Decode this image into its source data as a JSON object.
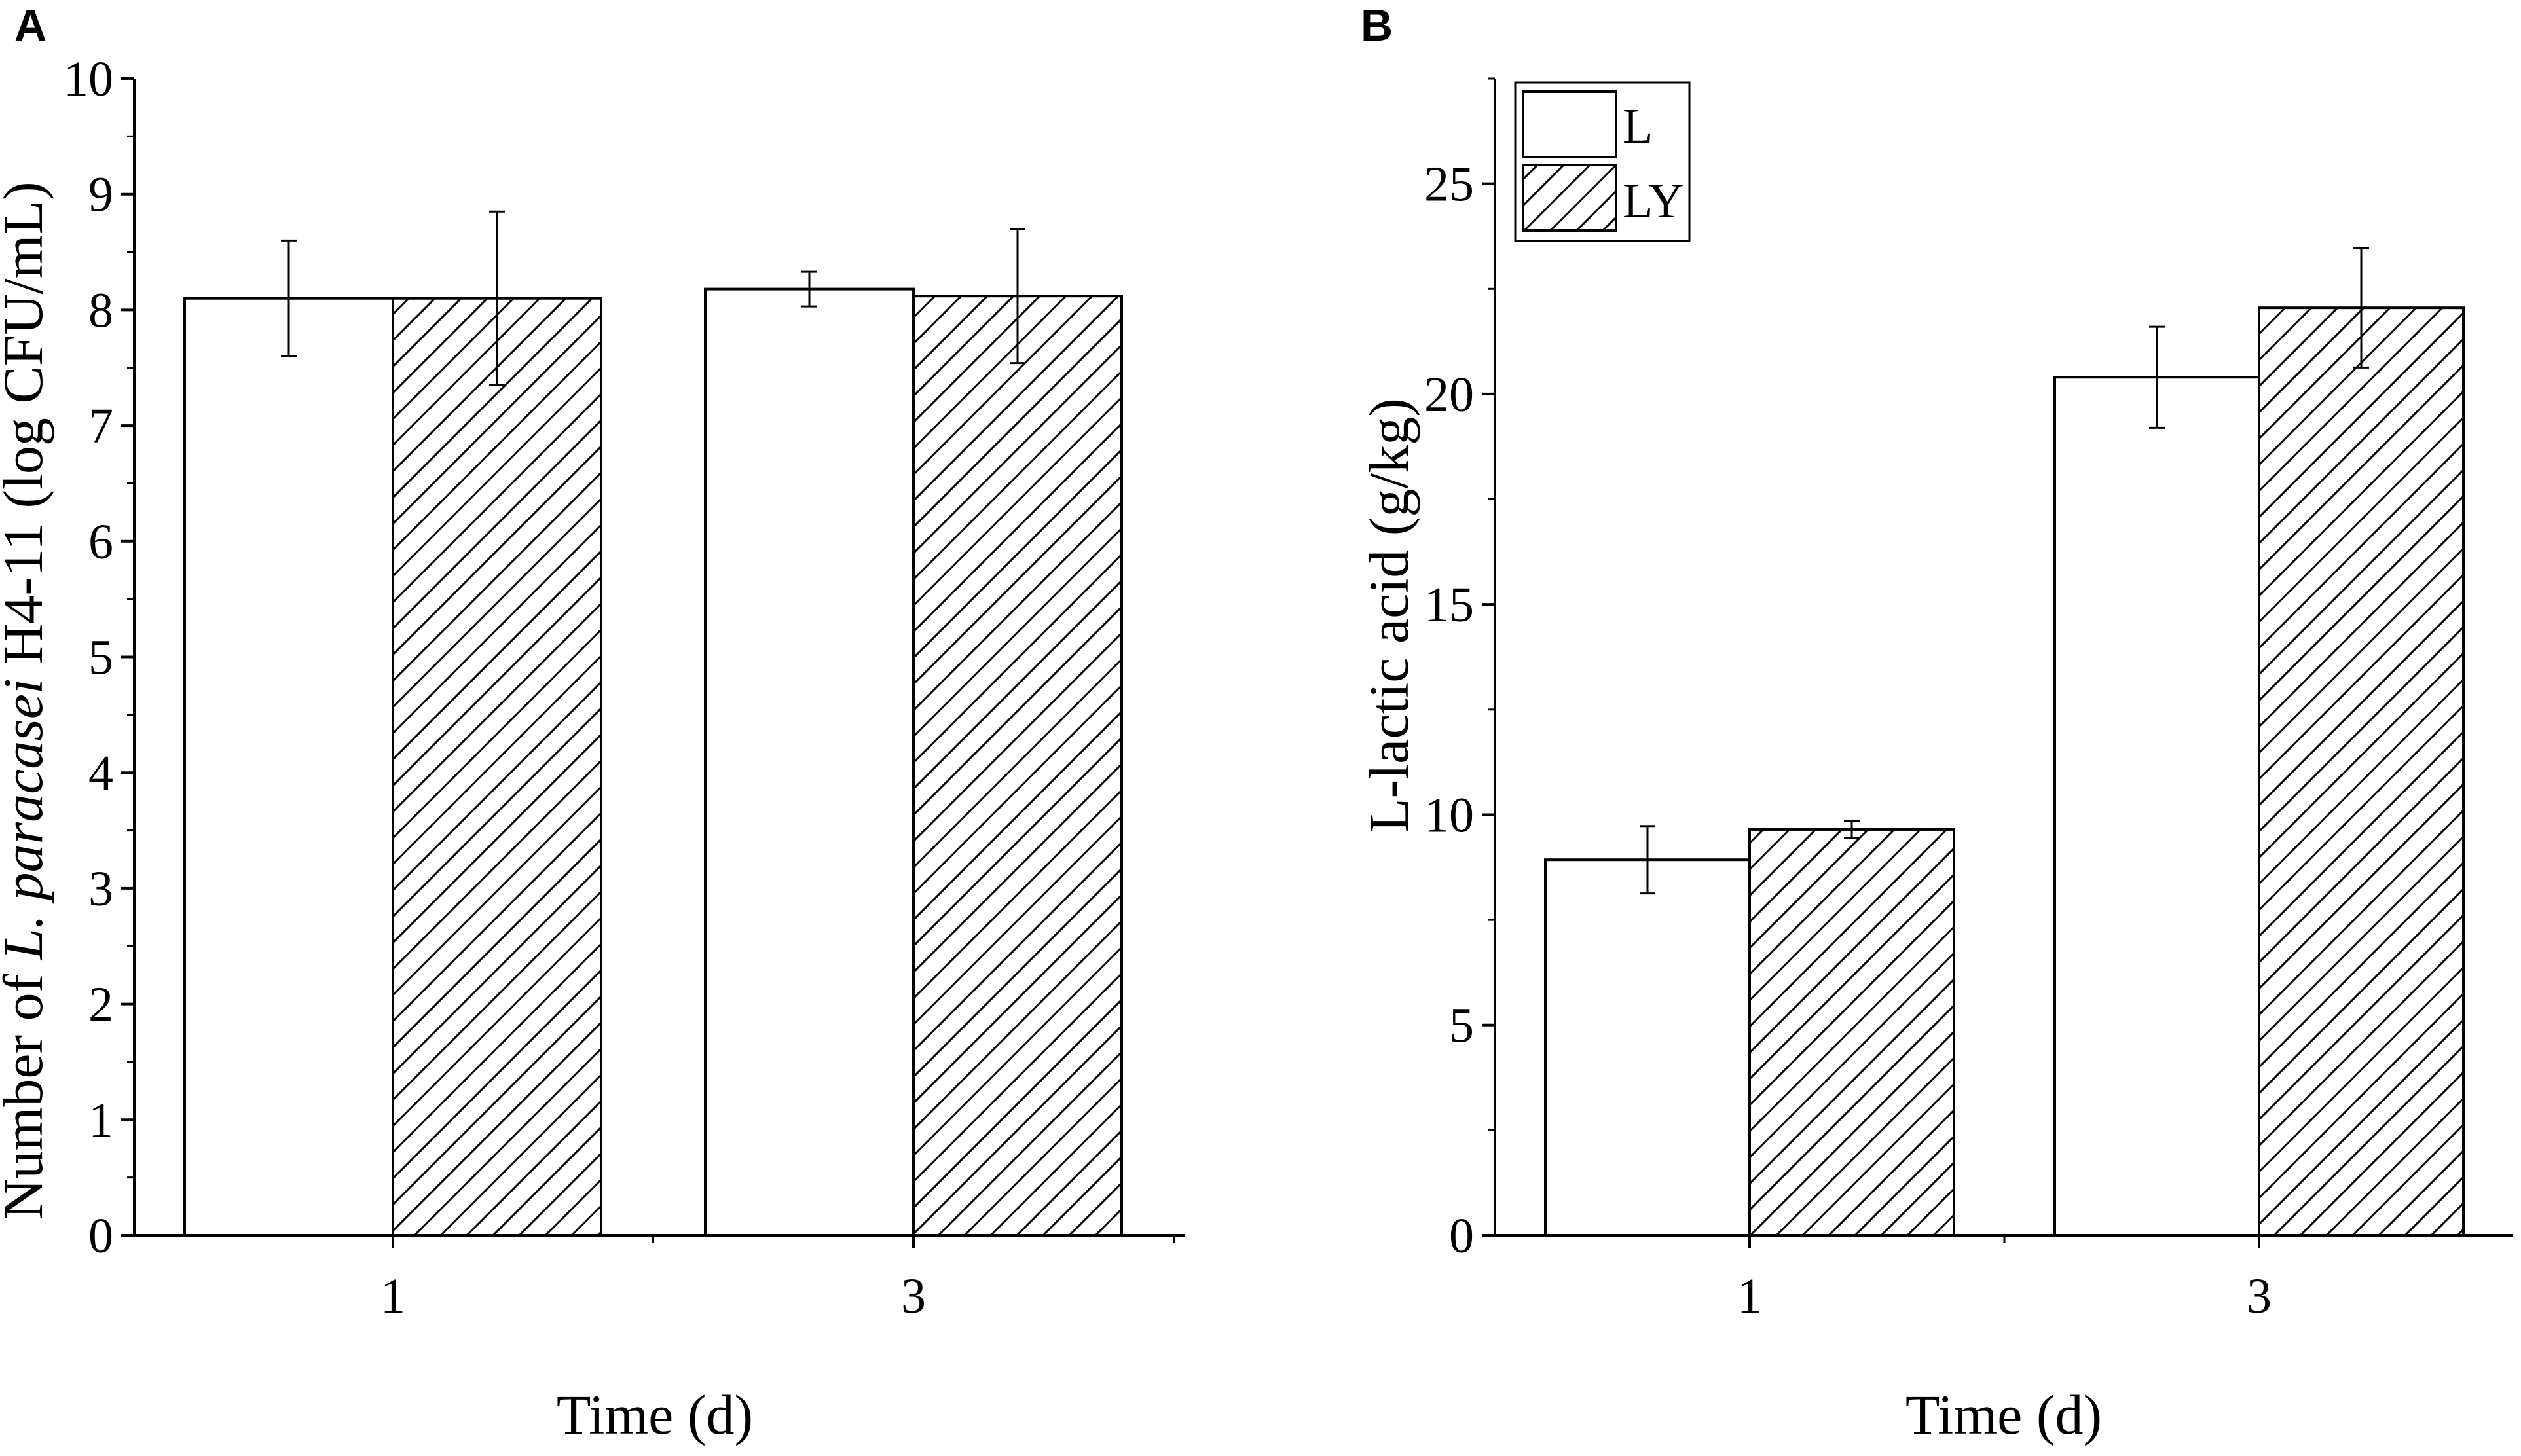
{
  "chart_data": [
    {
      "type": "bar",
      "panel_label": "A",
      "categories": [
        "1",
        "3"
      ],
      "series": [
        {
          "name": "L",
          "values": [
            8.1,
            8.18
          ],
          "errors": [
            0.5,
            0.15
          ]
        },
        {
          "name": "LY",
          "values": [
            8.1,
            8.12
          ],
          "errors": [
            0.75,
            0.58
          ]
        }
      ],
      "xlabel": "Time (d)",
      "ylabel_parts": [
        "Number of ",
        "L. paracasei",
        " H4-11 (log CFU/mL)"
      ],
      "ylim": [
        0,
        10
      ],
      "yticks": [
        "0",
        "1",
        "2",
        "3",
        "4",
        "5",
        "6",
        "7",
        "8",
        "9",
        "10"
      ],
      "legend": "none",
      "grid": false
    },
    {
      "type": "bar",
      "panel_label": "B",
      "categories": [
        "1",
        "3"
      ],
      "series": [
        {
          "name": "L",
          "values": [
            8.93,
            20.4
          ],
          "errors": [
            0.8,
            1.2
          ]
        },
        {
          "name": "LY",
          "values": [
            9.65,
            22.05
          ],
          "errors": [
            0.2,
            1.42
          ]
        }
      ],
      "xlabel": "Time (d)",
      "ylabel": "L-lactic acid (g/kg)",
      "ylim": [
        0,
        27.5
      ],
      "yticks": [
        "0",
        "5",
        "10",
        "15",
        "20",
        "25"
      ],
      "legend": "top-left",
      "grid": false
    }
  ],
  "styles": {
    "L": {
      "fill": "#ffffff",
      "stroke": "#000000"
    },
    "LY": {
      "fill": "hatch",
      "stroke": "#000000"
    }
  }
}
